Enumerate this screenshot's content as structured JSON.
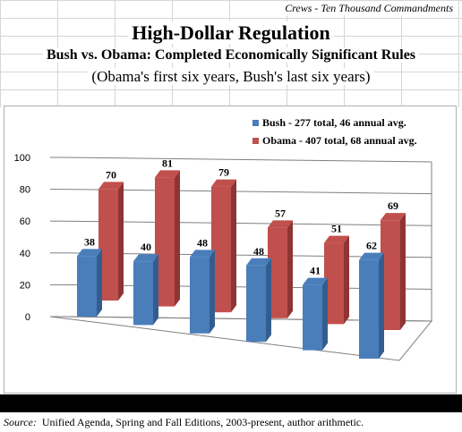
{
  "header": {
    "credit": "Crews - Ten Thousand Commandments",
    "title": "High-Dollar Regulation",
    "subtitle": "Bush vs. Obama: Completed Economically Significant Rules",
    "subtitle2": "(Obama's first six years, Bush's last six years)"
  },
  "footer": {
    "source_label": "Source:",
    "source_text": "Unified Agenda, Spring and Fall Editions, 2003-present, author arithmetic."
  },
  "chart_data": {
    "type": "bar",
    "categories": [
      "",
      "",
      "",
      "",
      "",
      ""
    ],
    "series": [
      {
        "name": "Bush - 277 total, 46 annual avg.",
        "values": [
          38,
          40,
          48,
          48,
          41,
          62
        ],
        "color": "#4a7ebb"
      },
      {
        "name": "Obama - 407 total, 68 annual avg.",
        "values": [
          70,
          81,
          79,
          57,
          51,
          69
        ],
        "color": "#c0504d"
      }
    ],
    "yticks": [
      "0",
      "20",
      "40",
      "60",
      "80",
      "100"
    ],
    "ylim": [
      0,
      100
    ],
    "legend_position": "top-right",
    "grid": true
  }
}
